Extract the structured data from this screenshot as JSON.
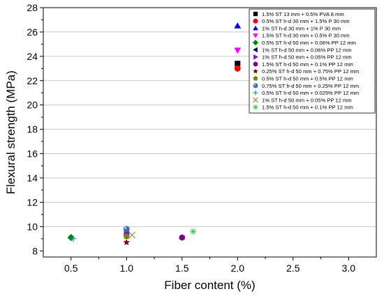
{
  "chart_data": {
    "type": "scatter",
    "xlabel": "Fiber content (%)",
    "ylabel": "Flexural strength (MPa)",
    "xlim": [
      0.25,
      3.25
    ],
    "ylim": [
      7.5,
      28
    ],
    "xticks": [
      "0.5",
      "1.0",
      "1.5",
      "2.0",
      "2.5",
      "3.0"
    ],
    "xtick_values": [
      0.5,
      1.0,
      1.5,
      2.0,
      2.5,
      3.0
    ],
    "yticks": [
      "8",
      "10",
      "12",
      "14",
      "16",
      "18",
      "20",
      "22",
      "24",
      "26",
      "28"
    ],
    "ytick_values": [
      8,
      10,
      12,
      14,
      16,
      18,
      20,
      22,
      24,
      26,
      28
    ],
    "grid": "horizontal",
    "legend_position": "top-right",
    "series": [
      {
        "name": "1.5% ST 13 mm + 0.5% PVA 8 mm",
        "marker": "square",
        "color": "#000000",
        "points": [
          {
            "x": 2.0,
            "y": 23.4
          }
        ]
      },
      {
        "name": "0.5% ST h-d 30 mm + 1.5% P 30 mm",
        "marker": "circle",
        "color": "#ff0000",
        "points": [
          {
            "x": 2.0,
            "y": 23.0
          }
        ]
      },
      {
        "name": "1% ST h-d 30 mm + 1% P 30 mm",
        "marker": "triangle-up",
        "color": "#0000ff",
        "points": [
          {
            "x": 2.0,
            "y": 26.5
          }
        ]
      },
      {
        "name": "1.5% ST h-d 30 mm + 0.5% P 30 mm",
        "marker": "triangle-down",
        "color": "#ff00ff",
        "points": [
          {
            "x": 2.0,
            "y": 24.5
          }
        ]
      },
      {
        "name": "0.5% ST h-d 50 mm + 0.06% PP 12 mm",
        "marker": "diamond",
        "color": "#008000",
        "points": [
          {
            "x": 0.5,
            "y": 9.1
          }
        ]
      },
      {
        "name": "1% ST h-d 50 mm + 0.06% PP 12 mm",
        "marker": "triangle-left",
        "color": "#000080",
        "points": [
          {
            "x": 1.0,
            "y": 9.4
          }
        ]
      },
      {
        "name": "1% ST h-d 50 mm + 0.05% PP 12 mm",
        "marker": "triangle-right",
        "color": "#8000ff",
        "points": [
          {
            "x": 1.0,
            "y": 9.5
          }
        ]
      },
      {
        "name": "1.5% ST h-d 50 mm + 0.1% PP 12 mm",
        "marker": "hexagon",
        "color": "#800080",
        "points": [
          {
            "x": 1.5,
            "y": 9.1
          }
        ]
      },
      {
        "name": "0.25% ST h-d 50 mm + 0.75% PP 12 mm",
        "marker": "star",
        "color": "#800000",
        "points": [
          {
            "x": 1.0,
            "y": 8.7
          }
        ]
      },
      {
        "name": "0.5% ST h-d 50 mm + 0.5% PP 12 mm",
        "marker": "pentagon",
        "color": "#808000",
        "points": [
          {
            "x": 1.0,
            "y": 9.2
          }
        ]
      },
      {
        "name": "0.75% ST h-d 50 mm + 0.25% PP 12 mm",
        "marker": "sphere",
        "color": "#3b6fb6",
        "points": [
          {
            "x": 1.0,
            "y": 9.8
          }
        ]
      },
      {
        "name": "0.5% ST h-d 50 mm + 0.025% PP 12 mm",
        "marker": "plus",
        "color": "#00a0c0",
        "points": [
          {
            "x": 0.52,
            "y": 9.0
          }
        ]
      },
      {
        "name": "1% ST h-d 50 mm + 0.05% PP 12 mm",
        "marker": "x",
        "color": "#c08040",
        "points": [
          {
            "x": 1.05,
            "y": 9.3
          }
        ]
      },
      {
        "name": "1.5% ST h-d 50 mm + 0.1% PP 12 mm",
        "marker": "asterisk",
        "color": "#33cc66",
        "points": [
          {
            "x": 1.6,
            "y": 9.6
          }
        ]
      }
    ]
  }
}
